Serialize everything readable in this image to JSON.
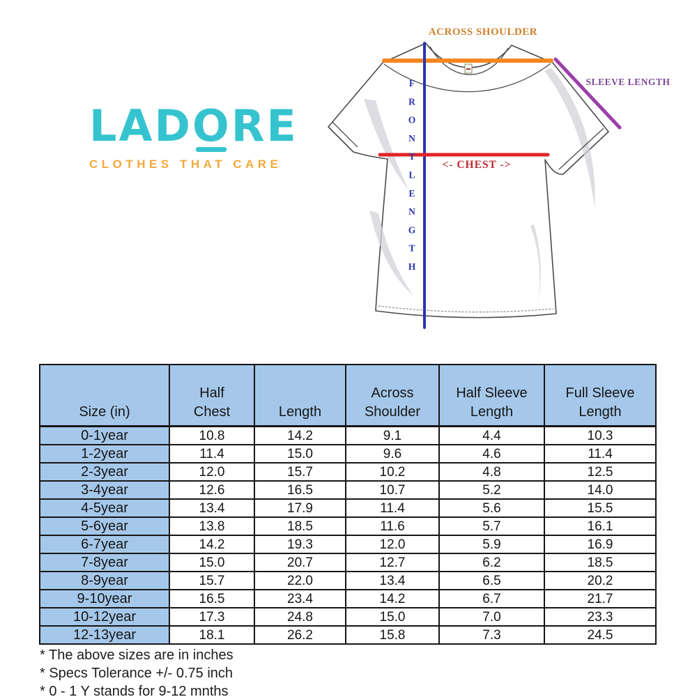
{
  "logo": {
    "word_pre": "LAD",
    "o_letter": "O",
    "word_post": "RE",
    "tagline": "CLOTHES THAT CARE",
    "brand_teal": "#35C4CF",
    "tagline_orange": "#F2A93B"
  },
  "diagram": {
    "labels": {
      "across_shoulder": "ACROSS SHOULDER",
      "sleeve_length": "SLEEVE LENGTH",
      "chest": "<- CHEST ->",
      "front_length": "FRONT LENGTH"
    },
    "colors": {
      "across_shoulder_line": "#F5861F",
      "chest_line": "#E02428",
      "front_length_line": "#2B35AF",
      "sleeve_length_line": "#9B3FA8",
      "across_shoulder_text": "#CE7F2B",
      "chest_text": "#BE2A33",
      "sleeve_length_text": "#7E4796",
      "front_length_text": "#2B35AF"
    }
  },
  "table": {
    "headers": [
      "Size (in)",
      "Half\nChest",
      "Length",
      "Across\nShoulder",
      "Half Sleeve\nLength",
      "Full Sleeve\nLength"
    ],
    "header_bg": "#A5C8EA",
    "rows": [
      [
        "0-1year",
        "10.8",
        "14.2",
        "9.1",
        "4.4",
        "10.3"
      ],
      [
        "1-2year",
        "11.4",
        "15.0",
        "9.6",
        "4.6",
        "11.4"
      ],
      [
        "2-3year",
        "12.0",
        "15.7",
        "10.2",
        "4.8",
        "12.5"
      ],
      [
        "3-4year",
        "12.6",
        "16.5",
        "10.7",
        "5.2",
        "14.0"
      ],
      [
        "4-5year",
        "13.4",
        "17.9",
        "11.4",
        "5.6",
        "15.5"
      ],
      [
        "5-6year",
        "13.8",
        "18.5",
        "11.6",
        "5.7",
        "16.1"
      ],
      [
        "6-7year",
        "14.2",
        "19.3",
        "12.0",
        "5.9",
        "16.9"
      ],
      [
        "7-8year",
        "15.0",
        "20.7",
        "12.7",
        "6.2",
        "18.5"
      ],
      [
        "8-9year",
        "15.7",
        "22.0",
        "13.4",
        "6.5",
        "20.2"
      ],
      [
        "9-10year",
        "16.5",
        "23.4",
        "14.2",
        "6.7",
        "21.7"
      ],
      [
        "10-12year",
        "17.3",
        "24.8",
        "15.0",
        "7.0",
        "23.3"
      ],
      [
        "12-13year",
        "18.1",
        "26.2",
        "15.8",
        "7.3",
        "24.5"
      ]
    ]
  },
  "footnotes": [
    "* The above sizes are in inches",
    "* Specs Tolerance +/- 0.75 inch",
    "* 0 - 1 Y stands for 9-12 mnths"
  ]
}
